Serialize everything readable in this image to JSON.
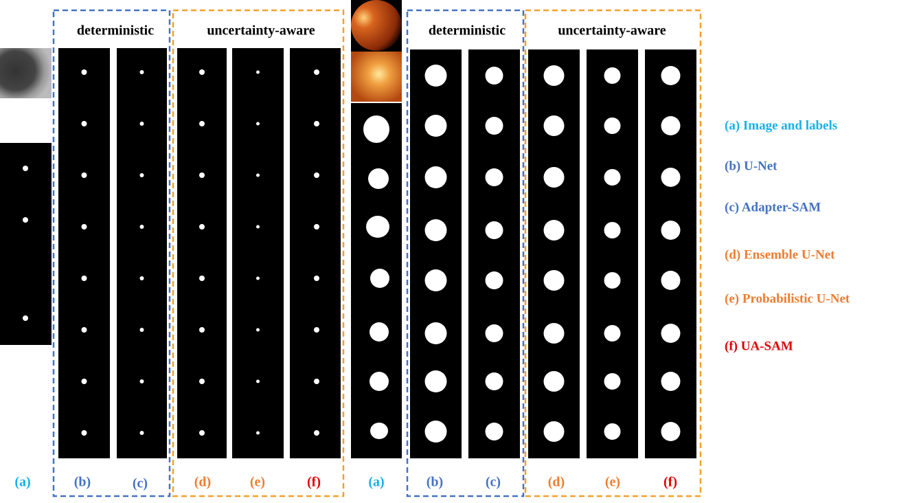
{
  "panels": [
    {
      "group_titles": [
        "deterministic",
        "uncertainty-aware"
      ],
      "column_labels": [
        "(a)",
        "(b)",
        "(c)",
        "(d)",
        "(e)",
        "(f)"
      ]
    },
    {
      "group_titles": [
        "deterministic",
        "uncertainty-aware"
      ],
      "column_labels": [
        "(a)",
        "(b)",
        "(c)",
        "(d)",
        "(e)",
        "(f)"
      ]
    }
  ],
  "legend": [
    "(a) Image and labels",
    "(b) U-Net",
    "(c) Adapter-SAM",
    "(d) Ensemble U-Net",
    "(e) Probabilistic U-Net",
    "(f) UA-SAM"
  ]
}
